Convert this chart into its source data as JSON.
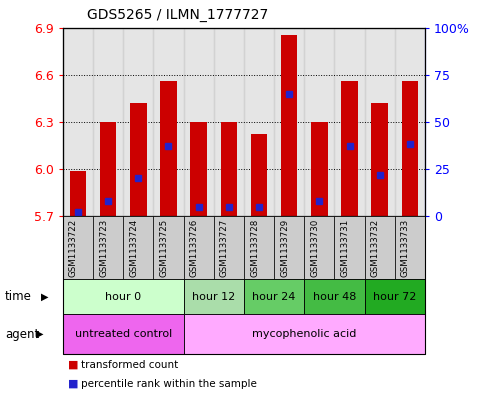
{
  "title": "GDS5265 / ILMN_1777727",
  "samples": [
    "GSM1133722",
    "GSM1133723",
    "GSM1133724",
    "GSM1133725",
    "GSM1133726",
    "GSM1133727",
    "GSM1133728",
    "GSM1133729",
    "GSM1133730",
    "GSM1133731",
    "GSM1133732",
    "GSM1133733"
  ],
  "transformed_counts": [
    5.99,
    6.3,
    6.42,
    6.56,
    6.3,
    6.3,
    6.22,
    6.85,
    6.3,
    6.56,
    6.42,
    6.56
  ],
  "percentile_ranks": [
    2,
    8,
    20,
    37,
    5,
    5,
    5,
    65,
    8,
    37,
    22,
    38
  ],
  "y_min": 5.7,
  "y_max": 6.9,
  "y_ticks": [
    5.7,
    6.0,
    6.3,
    6.6,
    6.9
  ],
  "bar_color": "#cc0000",
  "percentile_color": "#2222cc",
  "bar_width": 0.55,
  "time_groups": [
    {
      "label": "hour 0",
      "start": 0,
      "end": 3,
      "color": "#ccffcc"
    },
    {
      "label": "hour 12",
      "start": 4,
      "end": 5,
      "color": "#aaddaa"
    },
    {
      "label": "hour 24",
      "start": 6,
      "end": 7,
      "color": "#66cc66"
    },
    {
      "label": "hour 48",
      "start": 8,
      "end": 9,
      "color": "#44bb44"
    },
    {
      "label": "hour 72",
      "start": 10,
      "end": 11,
      "color": "#22aa22"
    }
  ],
  "agent_groups": [
    {
      "label": "untreated control",
      "start": 0,
      "end": 3,
      "color": "#ee66ee"
    },
    {
      "label": "mycophenolic acid",
      "start": 4,
      "end": 11,
      "color": "#ffaaff"
    }
  ],
  "legend_items": [
    {
      "label": "transformed count",
      "color": "#cc0000"
    },
    {
      "label": "percentile rank within the sample",
      "color": "#2222cc"
    }
  ],
  "right_axis_ticks": [
    0,
    25,
    50,
    75,
    100
  ],
  "right_axis_labels": [
    "0",
    "25",
    "50",
    "75",
    "100%"
  ],
  "bg_color": "#ffffff",
  "plot_bg": "#ffffff",
  "sample_bg": "#cccccc",
  "border_color": "#000000"
}
